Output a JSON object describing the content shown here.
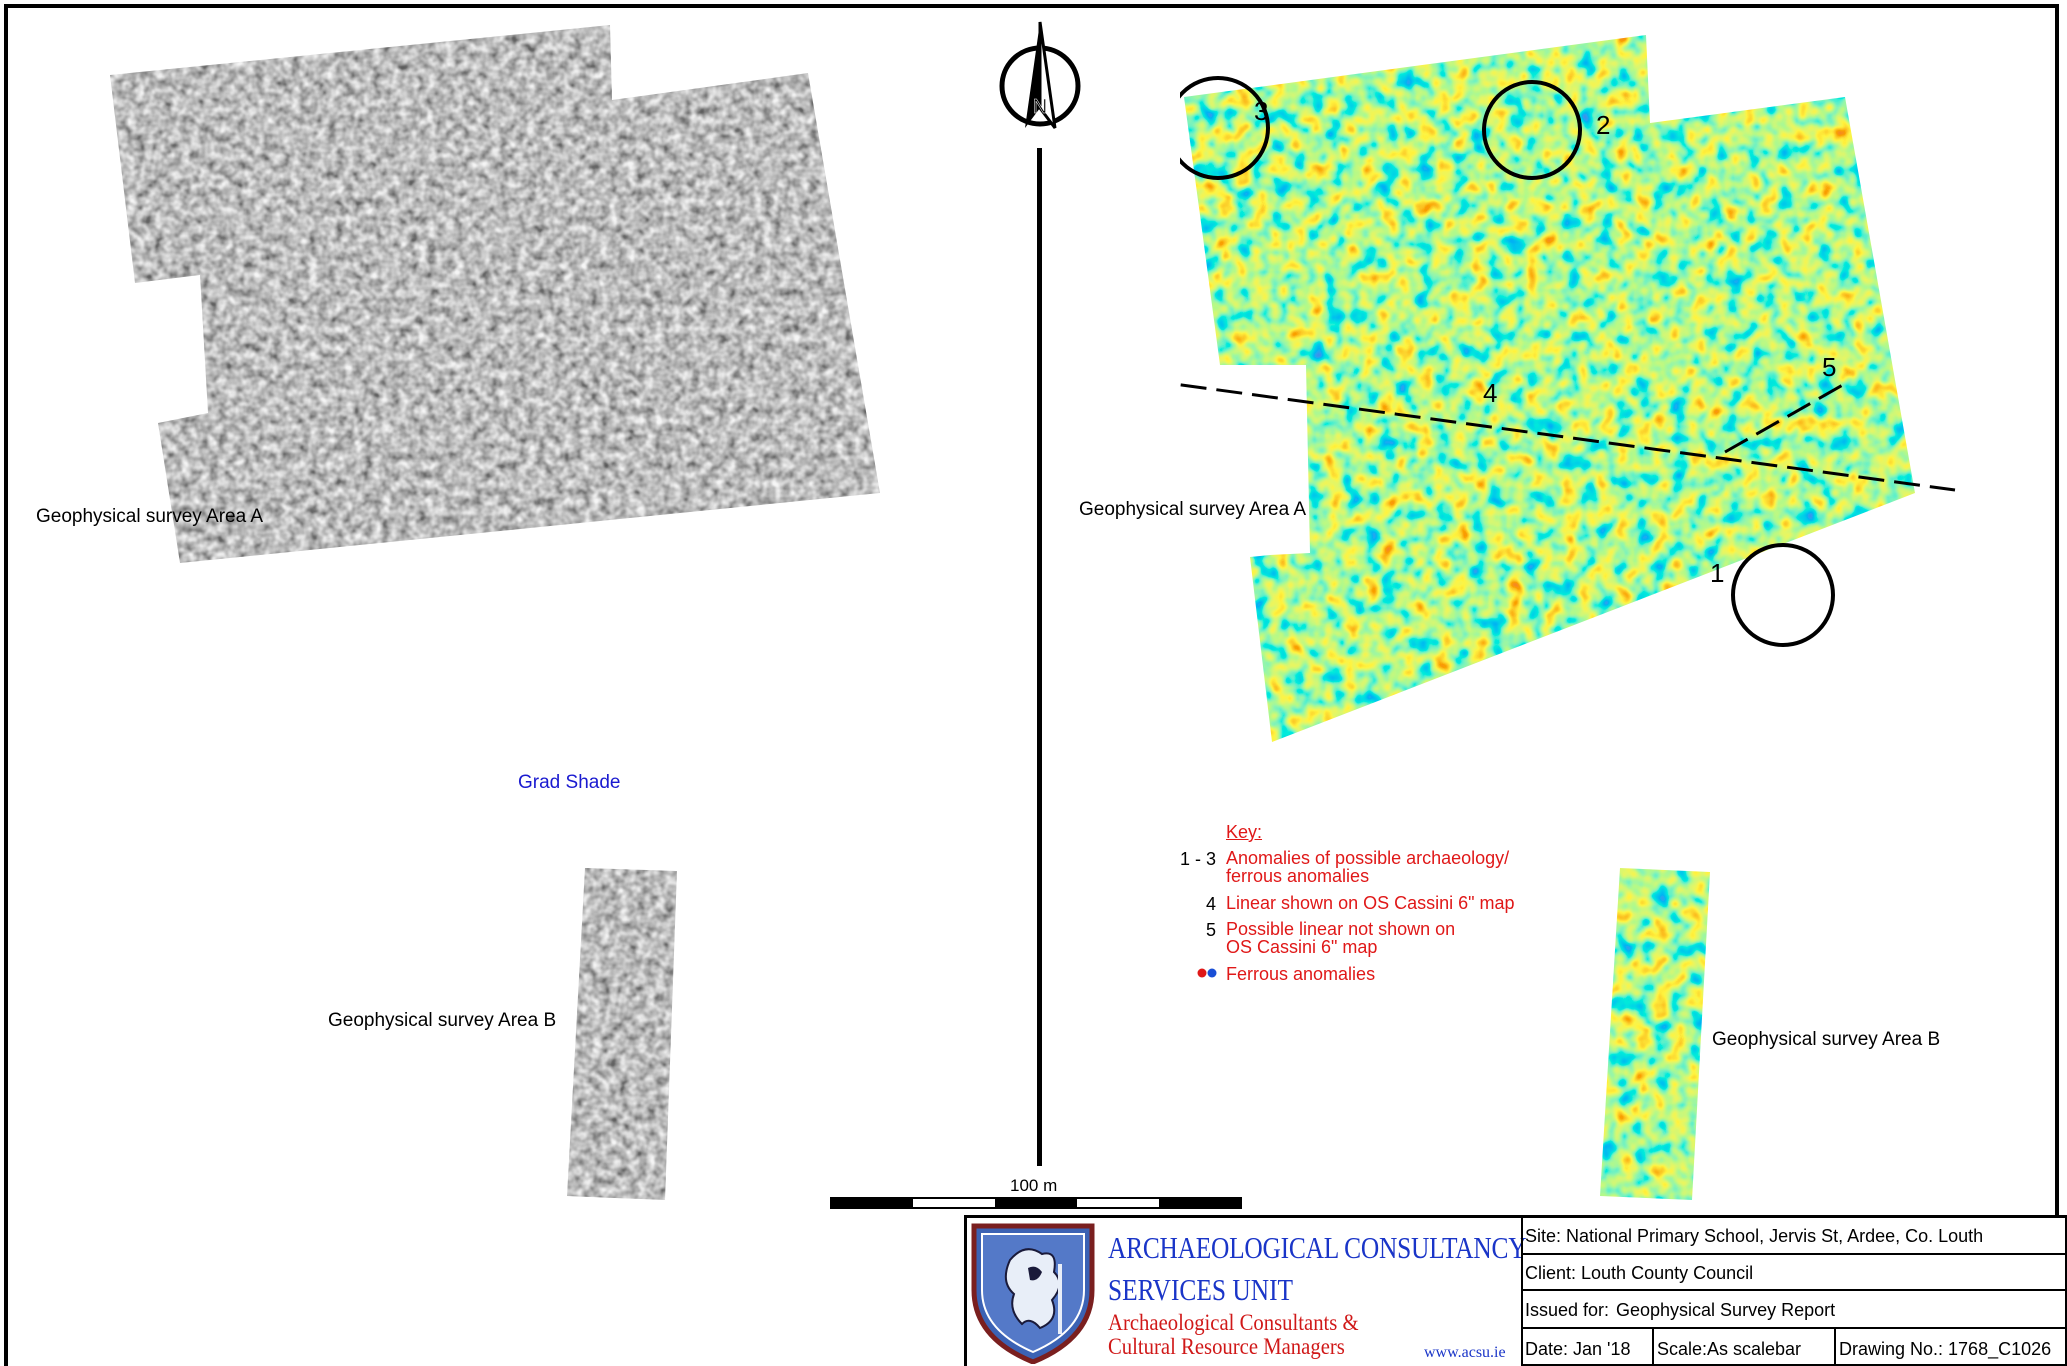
{
  "left_panel": {
    "area_a_label": "Geophysical survey Area A",
    "area_b_label": "Geophysical survey Area B",
    "caption": "Grad Shade"
  },
  "right_panel": {
    "area_a_label": "Geophysical survey Area A",
    "area_b_label": "Geophysical survey Area B",
    "anomaly_numbers": [
      "1",
      "2",
      "3",
      "4",
      "5"
    ]
  },
  "north_arrow": {
    "letter": "N"
  },
  "scale_bar": {
    "label": "100 m"
  },
  "key": {
    "title": "Key:",
    "items": [
      {
        "code": "1 - 3",
        "line1": "Anomalies of possible archaeology/",
        "line2": "ferrous anomalies"
      },
      {
        "code": "4",
        "line1": "Linear shown on OS Cassini 6\" map",
        "line2": ""
      },
      {
        "code": "5",
        "line1": "Possible linear not shown on",
        "line2": "OS Cassini 6\" map"
      },
      {
        "code": "",
        "line1": "Ferrous anomalies",
        "line2": ""
      }
    ],
    "ferrous_colors": [
      "#e01818",
      "#1a4fd6"
    ]
  },
  "title_block": {
    "org_line1": "ARCHAEOLOGICAL CONSULTANCY",
    "org_line2": "SERVICES UNIT",
    "tagline1": "Archaeological Consultants &",
    "tagline2": "Cultural Resource Managers",
    "website": "www.acsu.ie",
    "site_label": "Site:",
    "site_value": "National Primary School, Jervis St, Ardee, Co. Louth",
    "client": "Client: Louth County Council",
    "issued_label": "Issued for:",
    "issued_value": "Geophysical Survey Report",
    "date": "Date: Jan '18",
    "scale_label": "Scale:",
    "scale_value": "As scalebar",
    "drawing_no": "Drawing No.: 1768_C1026"
  },
  "colors": {
    "org_blue": "#1a35c8",
    "tagline_red": "#d01818",
    "key_red": "#e01818",
    "caption_blue": "#1a1ad0"
  }
}
